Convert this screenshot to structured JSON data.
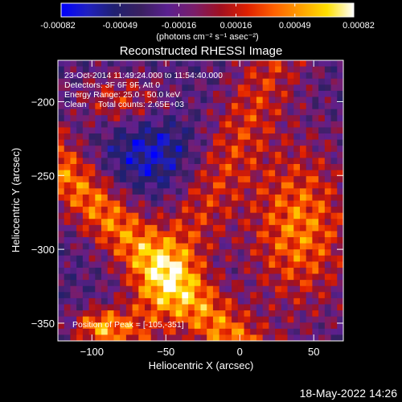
{
  "colorbar": {
    "tick_labels": [
      "-0.00082",
      "-0.00049",
      "-0.00016",
      "0.00016",
      "0.00049",
      "0.00082"
    ],
    "range": [
      -0.00082,
      0.00082
    ],
    "units_label": "(photons cm⁻² s⁻¹ asec⁻²)",
    "colormap": [
      "#0000ff",
      "#2020c0",
      "#202070",
      "#3a2060",
      "#5a2090",
      "#7a1d6a",
      "#a01020",
      "#e02000",
      "#ff6000",
      "#ffa000",
      "#ffe000",
      "#ffffff"
    ]
  },
  "chart_data": {
    "type": "heatmap",
    "title": "Reconstructed RHESSI Image",
    "xlabel": "Heliocentric X (arcsec)",
    "ylabel": "Heliocentric Y (arcsec)",
    "xlim": [
      -123,
      70
    ],
    "ylim": [
      -362,
      -172
    ],
    "x_ticks": [
      -100,
      -50,
      0,
      50
    ],
    "y_ticks": [
      -200,
      -250,
      -300,
      -350
    ],
    "x_tick_labels": [
      "−100",
      "−50",
      "0",
      "50"
    ],
    "y_tick_labels": [
      "−200",
      "−250",
      "−300",
      "−350"
    ],
    "annotations": [
      "23-Oct-2014 11:49:24.000 to 11:54:40.000",
      "Detectors: 3F 6F 9F, Att 0",
      "Energy Range: 25.0 - 50.0 keV",
      "Clean     Total counts: 2.65E+03"
    ],
    "peak_label": "Position of Peak = [-105,-351]",
    "peak_position": [
      -105,
      -351
    ]
  },
  "footer": {
    "timestamp": "18-May-2022 14:26"
  }
}
